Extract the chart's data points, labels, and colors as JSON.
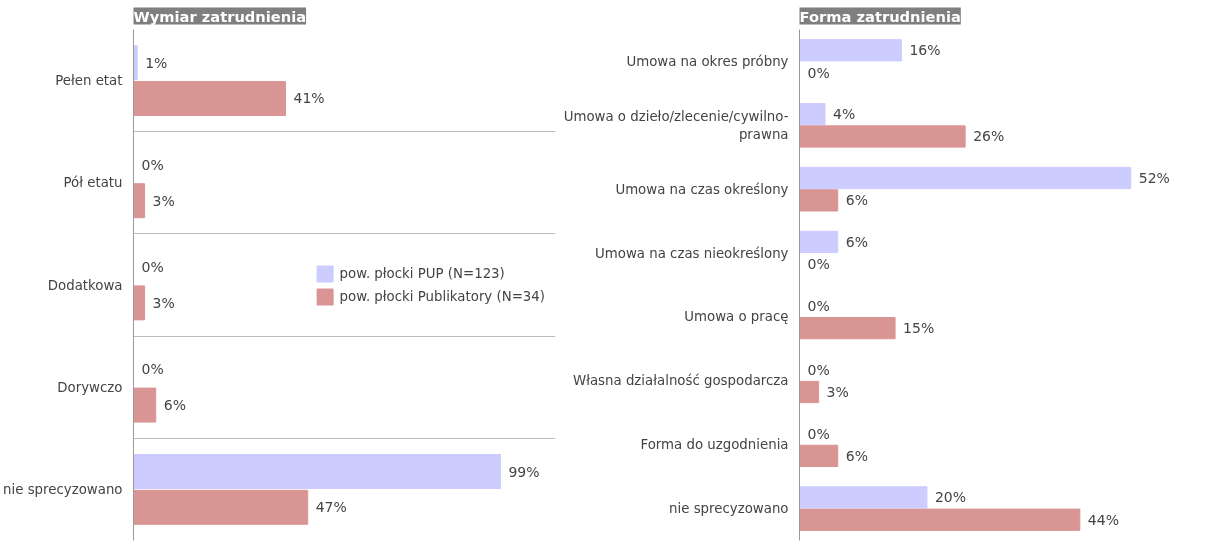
{
  "chart_data": [
    {
      "type": "bar",
      "orientation": "horizontal",
      "title": "Wymiar zatrudnienia",
      "categories": [
        "Pełen etat",
        "Pół etatu",
        "Dodatkowa",
        "Dorywczo",
        "nie sprecyzowano"
      ],
      "series": [
        {
          "name": "pow. płocki PUP (N=123)",
          "color": "#ccccff",
          "values": [
            1,
            0,
            0,
            0,
            99
          ],
          "value_labels": [
            "1%",
            "0%",
            "0%",
            "0%",
            "99%"
          ]
        },
        {
          "name": "pow. płocki Publikatory (N=34)",
          "color": "#d99594",
          "values": [
            41,
            3,
            3,
            6,
            47
          ],
          "value_labels": [
            "41%",
            "3%",
            "3%",
            "6%",
            "47%"
          ]
        }
      ],
      "tick_labels": "y",
      "grid": "y",
      "legend": "right"
    },
    {
      "type": "bar",
      "orientation": "horizontal",
      "title": "Forma zatrudnienia",
      "categories": [
        "Umowa na okres próbny",
        "Umowa o dzieło/zlecenie/cywilno-\nprawna",
        "Umowa na czas określony",
        "Umowa na czas nieokreślony",
        "Umowa o pracę",
        "Własna działalność gospodarcza",
        "Forma do uzgodnienia",
        "nie sprecyzowano"
      ],
      "series": [
        {
          "color": "#ccccff",
          "values": [
            16,
            4,
            52,
            6,
            0,
            0,
            0,
            20
          ],
          "value_labels": [
            "16%",
            "4%",
            "52%",
            "6%",
            "0%",
            "0%",
            "0%",
            "20%"
          ]
        },
        {
          "color": "#d99594",
          "values": [
            0,
            26,
            6,
            0,
            15,
            3,
            6,
            44
          ],
          "value_labels": [
            "0%",
            "26%",
            "6%",
            "0%",
            "15%",
            "3%",
            "6%",
            "44%"
          ]
        }
      ],
      "tick_labels": "y",
      "grid": false,
      "legend": false
    }
  ]
}
